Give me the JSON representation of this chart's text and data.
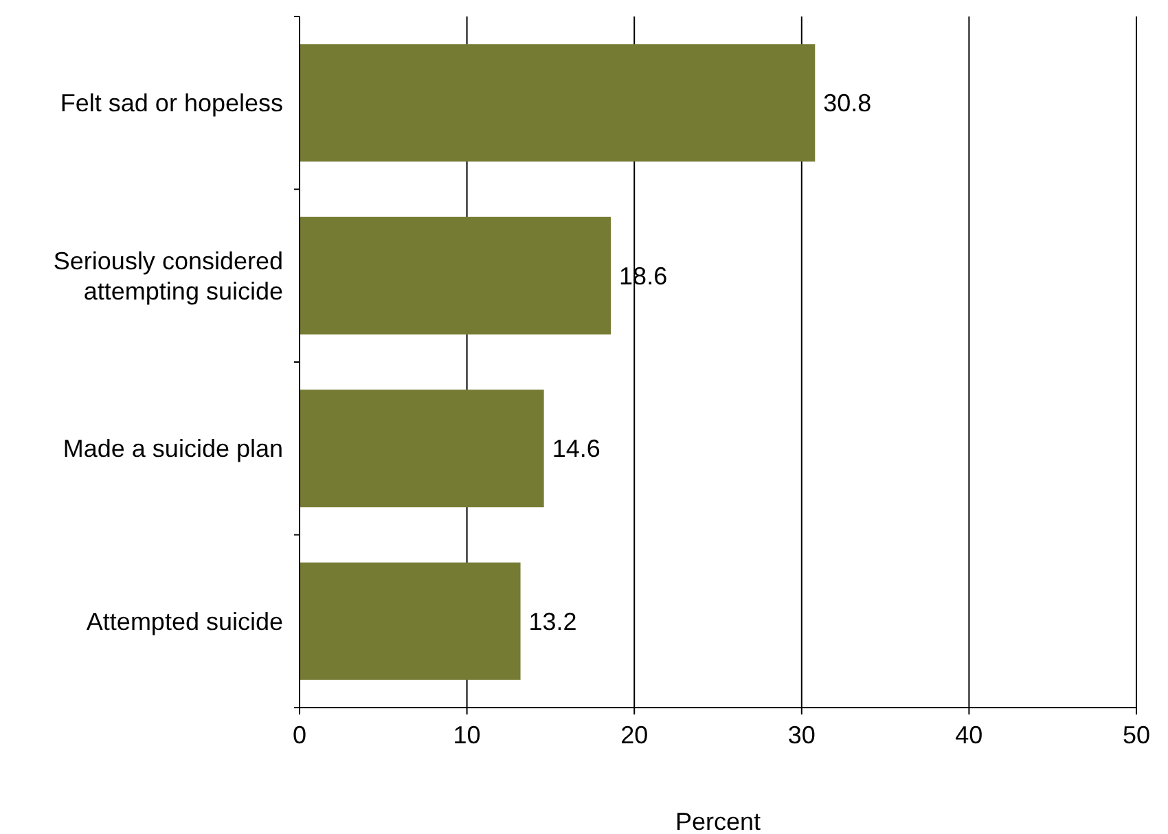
{
  "chart_data": {
    "type": "bar",
    "orientation": "horizontal",
    "categories": [
      "Felt sad or hopeless",
      "Seriously considered attempting suicide",
      "Made a suicide plan",
      "Attempted suicide"
    ],
    "values": [
      30.8,
      18.6,
      14.6,
      13.2
    ],
    "color": "#767b34",
    "data_labels": true,
    "xlabel": "Percent",
    "xlim": [
      0,
      50
    ],
    "xticks": [
      0,
      10,
      20,
      30,
      40,
      50
    ],
    "grid": "x"
  }
}
